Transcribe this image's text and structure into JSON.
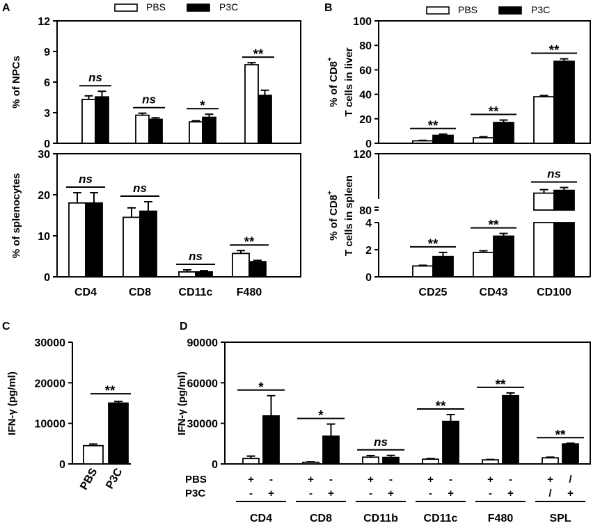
{
  "legend": {
    "pbs": "PBS",
    "p3c": "P3C"
  },
  "chart_data": [
    {
      "id": "A-top",
      "panel_label": "A",
      "type": "bar",
      "ylabel": "% of NPCs",
      "ylim": [
        0,
        12
      ],
      "yticks": [
        0,
        3,
        6,
        9,
        12
      ],
      "categories": [
        "CD4",
        "CD8",
        "CD11c",
        "F480"
      ],
      "show_categories": false,
      "series": [
        {
          "name": "PBS",
          "values": [
            4.3,
            2.75,
            2.1,
            7.7
          ],
          "errors": [
            0.35,
            0.2,
            0.1,
            0.2
          ]
        },
        {
          "name": "P3C",
          "values": [
            4.55,
            2.35,
            2.55,
            4.7
          ],
          "errors": [
            0.55,
            0.15,
            0.3,
            0.5
          ]
        }
      ],
      "significance": [
        "ns",
        "ns",
        "*",
        "**"
      ]
    },
    {
      "id": "A-bottom",
      "type": "bar",
      "ylabel": "% of splenocytes",
      "ylim": [
        0,
        30
      ],
      "yticks": [
        0,
        10,
        20,
        30
      ],
      "categories": [
        "CD4",
        "CD8",
        "CD11c",
        "F480"
      ],
      "show_categories": true,
      "series": [
        {
          "name": "PBS",
          "values": [
            18,
            14.5,
            1.2,
            5.7
          ],
          "errors": [
            2.5,
            2.3,
            0.5,
            0.7
          ]
        },
        {
          "name": "P3C",
          "values": [
            18,
            16,
            1.2,
            3.7
          ],
          "errors": [
            2.5,
            2.3,
            0.3,
            0.3
          ]
        }
      ],
      "significance": [
        "ns",
        "ns",
        "ns",
        "**"
      ]
    },
    {
      "id": "B-top",
      "panel_label": "B",
      "type": "bar",
      "ylabel_line1": "% of CD8",
      "ylabel_sup": "+",
      "ylabel_line2": "T cells in liver",
      "ylim": [
        0,
        100
      ],
      "yticks": [
        0,
        20,
        40,
        60,
        80,
        100
      ],
      "categories": [
        "CD25",
        "CD43",
        "CD100"
      ],
      "show_categories": false,
      "series": [
        {
          "name": "PBS",
          "values": [
            2,
            4.5,
            38
          ],
          "errors": [
            0.4,
            0.8,
            1
          ]
        },
        {
          "name": "P3C",
          "values": [
            6.5,
            17,
            67
          ],
          "errors": [
            1,
            2,
            2
          ]
        }
      ],
      "significance": [
        "**",
        "**",
        "**"
      ]
    },
    {
      "id": "B-bottom",
      "type": "bar",
      "broken_axis": true,
      "ylabel_line1": "% of CD8",
      "ylabel_sup": "+",
      "ylabel_line2": "T cells in spleen",
      "ylim_low": [
        0,
        4
      ],
      "ylim_high": [
        80,
        120
      ],
      "yticks_low": [
        0,
        2,
        4
      ],
      "yticks_high": [
        80,
        120
      ],
      "categories": [
        "CD25",
        "CD43",
        "CD100"
      ],
      "show_categories": true,
      "series": [
        {
          "name": "PBS",
          "values": [
            0.8,
            1.8,
            92
          ],
          "errors": [
            0.05,
            0.12,
            2.5
          ]
        },
        {
          "name": "P3C",
          "values": [
            1.5,
            3.0,
            94
          ],
          "errors": [
            0.3,
            0.2,
            2
          ]
        }
      ],
      "significance": [
        "**",
        "**",
        "ns"
      ]
    },
    {
      "id": "C",
      "panel_label": "C",
      "type": "bar",
      "ylabel": "IFN-γ (pg/ml)",
      "ylim": [
        0,
        30000
      ],
      "yticks": [
        0,
        10000,
        20000,
        30000
      ],
      "categories": [
        "PBS",
        "P3C"
      ],
      "values": [
        4500,
        15000
      ],
      "errors": [
        400,
        400
      ],
      "significance": [
        "**"
      ]
    },
    {
      "id": "D",
      "panel_label": "D",
      "type": "bar",
      "ylabel": "IFN-γ (pg/ml)",
      "ylim": [
        0,
        90000
      ],
      "yticks": [
        0,
        30000,
        60000,
        90000
      ],
      "categories": [
        "CD4",
        "CD8",
        "CD11b",
        "CD11c",
        "F480",
        "SPL"
      ],
      "series": [
        {
          "name": "PBS",
          "values": [
            4000,
            1200,
            5000,
            3500,
            3000,
            4500
          ],
          "errors": [
            1800,
            300,
            1200,
            500,
            300,
            500
          ]
        },
        {
          "name": "P3C",
          "values": [
            35500,
            20500,
            4800,
            31500,
            50500,
            14800
          ],
          "errors": [
            15000,
            9000,
            1500,
            5000,
            2000,
            500
          ]
        }
      ],
      "significance": [
        "*",
        "*",
        "ns",
        "**",
        "**",
        "**"
      ],
      "row_labels": [
        "PBS",
        "P3C"
      ],
      "condition_rows": [
        [
          [
            "+",
            "-"
          ],
          [
            "+",
            "-"
          ],
          [
            "+",
            "-"
          ],
          [
            "+",
            "-"
          ],
          [
            "+",
            "-"
          ],
          [
            "+",
            "/"
          ]
        ],
        [
          [
            "-",
            "+"
          ],
          [
            "-",
            "+"
          ],
          [
            "-",
            "+"
          ],
          [
            "-",
            "+"
          ],
          [
            "-",
            "+"
          ],
          [
            "/",
            "+"
          ]
        ]
      ]
    }
  ]
}
